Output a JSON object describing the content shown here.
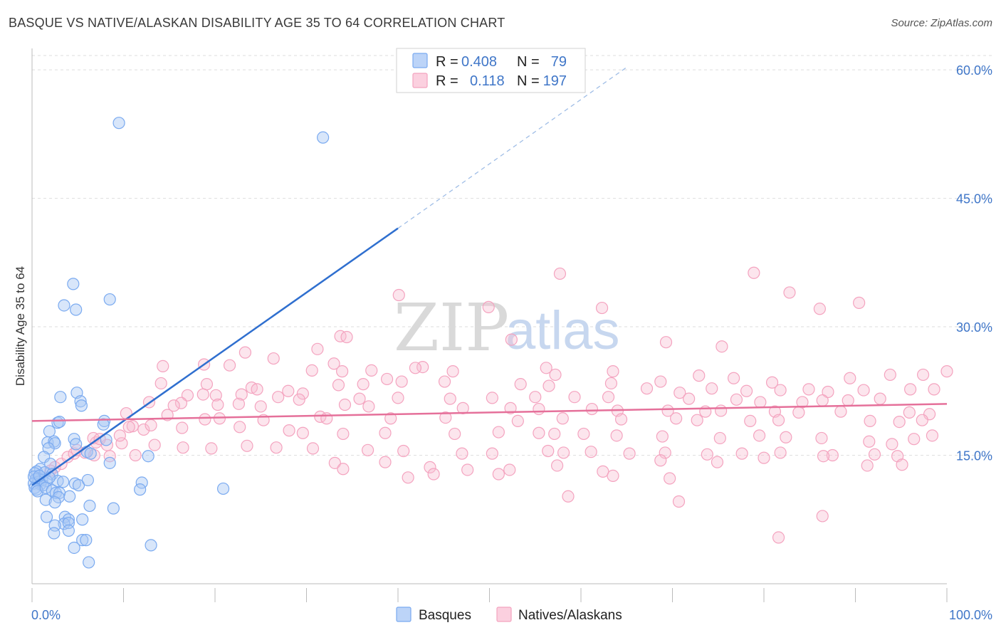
{
  "header": {
    "title": "BASQUE VS NATIVE/ALASKAN DISABILITY AGE 35 TO 64 CORRELATION CHART",
    "source": "Source: ZipAtlas.com"
  },
  "watermark": {
    "zip": "ZIP",
    "atlas": "atlas"
  },
  "legend": {
    "r_label": "R =",
    "n_label": "N =",
    "rows": [
      {
        "r": "0.408",
        "n": "79",
        "color": "#7aaaf0"
      },
      {
        "r": "0.118",
        "n": "197",
        "color": "#f4a3bf"
      }
    ]
  },
  "chart_data": {
    "type": "scatter",
    "title": "BASQUE VS NATIVE/ALASKAN DISABILITY AGE 35 TO 64 CORRELATION CHART",
    "xlabel": "",
    "ylabel": "Disability Age 35 to 64",
    "xlim": [
      0,
      100
    ],
    "ylim": [
      0,
      63
    ],
    "x_tick_labels": [
      "0.0%",
      "100.0%"
    ],
    "y_ticks": [
      15,
      30,
      45,
      60
    ],
    "y_tick_labels": [
      "15.0%",
      "30.0%",
      "45.0%",
      "60.0%"
    ],
    "grid": true,
    "legend_position": "top-center",
    "series": [
      {
        "name": "Basques",
        "color": "#7aaaf0",
        "line_color": "#2f6fcf",
        "trend": {
          "x0": 0,
          "y0": 11.5,
          "x1": 40,
          "y1": 41.5,
          "dash_to_x": 65,
          "dash_to_y": 60.3
        },
        "points": [
          [
            9.5,
            53.8
          ],
          [
            31.8,
            52.1
          ],
          [
            4.5,
            35.0
          ],
          [
            3.5,
            32.5
          ],
          [
            4.8,
            32.0
          ],
          [
            8.5,
            33.2
          ],
          [
            4.9,
            22.3
          ],
          [
            3.1,
            21.8
          ],
          [
            5.3,
            21.3
          ],
          [
            5.4,
            20.8
          ],
          [
            7.9,
            19.0
          ],
          [
            7.8,
            18.6
          ],
          [
            2.8,
            18.8
          ],
          [
            3.0,
            18.9
          ],
          [
            1.9,
            17.8
          ],
          [
            1.7,
            16.5
          ],
          [
            2.4,
            16.6
          ],
          [
            2.5,
            16.4
          ],
          [
            1.8,
            15.8
          ],
          [
            4.6,
            16.9
          ],
          [
            4.8,
            16.3
          ],
          [
            6.0,
            15.4
          ],
          [
            6.4,
            15.2
          ],
          [
            8.1,
            16.8
          ],
          [
            8.5,
            14.1
          ],
          [
            12.7,
            14.9
          ],
          [
            1.3,
            14.8
          ],
          [
            2.0,
            14.0
          ],
          [
            0.9,
            13.4
          ],
          [
            0.5,
            13.1
          ],
          [
            0.3,
            12.9
          ],
          [
            1.4,
            13.0
          ],
          [
            2.2,
            12.8
          ],
          [
            0.6,
            12.3
          ],
          [
            1.1,
            12.1
          ],
          [
            1.6,
            12.0
          ],
          [
            0.4,
            12.2
          ],
          [
            0.7,
            11.9
          ],
          [
            0.9,
            11.6
          ],
          [
            1.2,
            11.5
          ],
          [
            0.2,
            11.7
          ],
          [
            0.3,
            11.2
          ],
          [
            0.5,
            11.0
          ],
          [
            0.6,
            10.8
          ],
          [
            2.8,
            12.0
          ],
          [
            3.4,
            11.9
          ],
          [
            4.7,
            11.7
          ],
          [
            5.1,
            11.5
          ],
          [
            6.1,
            12.1
          ],
          [
            12.0,
            11.8
          ],
          [
            11.8,
            11.0
          ],
          [
            20.9,
            11.1
          ],
          [
            1.5,
            11.2
          ],
          [
            2.2,
            10.9
          ],
          [
            2.6,
            10.6
          ],
          [
            4.1,
            10.2
          ],
          [
            3.0,
            10.6
          ],
          [
            2.9,
            10.1
          ],
          [
            1.5,
            9.8
          ],
          [
            2.5,
            9.5
          ],
          [
            6.3,
            9.1
          ],
          [
            8.9,
            8.8
          ],
          [
            1.6,
            7.8
          ],
          [
            3.6,
            7.8
          ],
          [
            4.0,
            7.5
          ],
          [
            5.5,
            7.5
          ],
          [
            3.5,
            7.0
          ],
          [
            4.0,
            7.1
          ],
          [
            2.5,
            6.8
          ],
          [
            4.0,
            6.2
          ],
          [
            2.4,
            5.9
          ],
          [
            5.5,
            5.1
          ],
          [
            5.9,
            5.1
          ],
          [
            4.6,
            4.2
          ],
          [
            13.0,
            4.5
          ],
          [
            6.2,
            2.5
          ],
          [
            0.2,
            12.5
          ],
          [
            0.8,
            12.6
          ],
          [
            1.9,
            12.4
          ]
        ]
      },
      {
        "name": "Natives/Alaskans",
        "color": "#f4a3bf",
        "line_color": "#e5709a",
        "trend": {
          "x0": 0,
          "y0": 19.0,
          "x1": 100,
          "y1": 21.0
        },
        "points": [
          [
            57.7,
            36.2
          ],
          [
            78.9,
            36.3
          ],
          [
            82.8,
            34.0
          ],
          [
            40.1,
            33.7
          ],
          [
            49.9,
            32.3
          ],
          [
            62.3,
            32.2
          ],
          [
            86.1,
            32.1
          ],
          [
            90.4,
            32.8
          ],
          [
            33.7,
            28.9
          ],
          [
            34.4,
            28.8
          ],
          [
            52.4,
            28.5
          ],
          [
            69.3,
            28.2
          ],
          [
            75.4,
            27.7
          ],
          [
            31.2,
            27.4
          ],
          [
            23.3,
            27.0
          ],
          [
            26.4,
            26.3
          ],
          [
            33.0,
            25.7
          ],
          [
            42.7,
            25.3
          ],
          [
            56.2,
            25.2
          ],
          [
            14.3,
            25.4
          ],
          [
            18.8,
            25.6
          ],
          [
            21.6,
            25.5
          ],
          [
            30.6,
            24.9
          ],
          [
            33.9,
            24.8
          ],
          [
            37.1,
            24.9
          ],
          [
            41.9,
            25.2
          ],
          [
            46.0,
            24.8
          ],
          [
            57.2,
            24.4
          ],
          [
            63.5,
            24.8
          ],
          [
            68.7,
            23.6
          ],
          [
            72.9,
            24.3
          ],
          [
            76.7,
            24.0
          ],
          [
            80.9,
            23.5
          ],
          [
            89.4,
            24.0
          ],
          [
            93.8,
            24.4
          ],
          [
            97.4,
            24.4
          ],
          [
            100.0,
            24.8
          ],
          [
            14.1,
            23.4
          ],
          [
            19.1,
            23.3
          ],
          [
            24.0,
            22.9
          ],
          [
            24.6,
            22.7
          ],
          [
            28.0,
            22.5
          ],
          [
            29.6,
            22.2
          ],
          [
            33.5,
            23.2
          ],
          [
            36.2,
            23.3
          ],
          [
            38.8,
            23.9
          ],
          [
            40.4,
            23.6
          ],
          [
            45.1,
            23.6
          ],
          [
            53.4,
            23.3
          ],
          [
            56.5,
            23.1
          ],
          [
            63.3,
            23.4
          ],
          [
            67.2,
            22.8
          ],
          [
            70.8,
            22.3
          ],
          [
            74.3,
            22.8
          ],
          [
            78.1,
            22.5
          ],
          [
            81.8,
            22.6
          ],
          [
            84.9,
            22.7
          ],
          [
            87.0,
            22.4
          ],
          [
            90.9,
            22.6
          ],
          [
            96.0,
            22.7
          ],
          [
            98.6,
            22.7
          ],
          [
            17.0,
            22.0
          ],
          [
            18.7,
            22.1
          ],
          [
            20.1,
            22.0
          ],
          [
            22.9,
            22.1
          ],
          [
            26.9,
            21.8
          ],
          [
            29.2,
            21.5
          ],
          [
            35.8,
            21.6
          ],
          [
            40.0,
            21.7
          ],
          [
            45.7,
            21.6
          ],
          [
            50.3,
            21.7
          ],
          [
            55.0,
            21.8
          ],
          [
            59.3,
            21.8
          ],
          [
            63.0,
            21.8
          ],
          [
            71.8,
            21.6
          ],
          [
            77.0,
            21.5
          ],
          [
            79.6,
            21.2
          ],
          [
            84.2,
            21.2
          ],
          [
            86.4,
            21.4
          ],
          [
            89.2,
            21.4
          ],
          [
            92.7,
            21.6
          ],
          [
            12.8,
            21.2
          ],
          [
            16.3,
            21.1
          ],
          [
            20.3,
            20.9
          ],
          [
            22.6,
            21.0
          ],
          [
            25.0,
            20.7
          ],
          [
            34.2,
            20.9
          ],
          [
            36.8,
            20.7
          ],
          [
            47.1,
            20.5
          ],
          [
            52.3,
            20.5
          ],
          [
            55.4,
            20.4
          ],
          [
            61.2,
            20.4
          ],
          [
            64.0,
            20.2
          ],
          [
            69.5,
            20.2
          ],
          [
            73.6,
            20.1
          ],
          [
            75.3,
            20.2
          ],
          [
            81.2,
            20.1
          ],
          [
            83.8,
            20.0
          ],
          [
            88.4,
            20.1
          ],
          [
            95.9,
            20.0
          ],
          [
            98.1,
            19.8
          ],
          [
            10.3,
            19.9
          ],
          [
            14.8,
            19.7
          ],
          [
            18.9,
            19.2
          ],
          [
            20.5,
            19.3
          ],
          [
            25.3,
            19.1
          ],
          [
            31.5,
            19.5
          ],
          [
            32.2,
            19.3
          ],
          [
            39.2,
            19.3
          ],
          [
            45.2,
            19.4
          ],
          [
            53.1,
            19.0
          ],
          [
            58.0,
            19.3
          ],
          [
            64.4,
            19.2
          ],
          [
            70.4,
            19.3
          ],
          [
            72.7,
            19.1
          ],
          [
            78.5,
            19.0
          ],
          [
            81.6,
            19.1
          ],
          [
            91.6,
            19.0
          ],
          [
            94.8,
            18.9
          ],
          [
            97.3,
            19.1
          ],
          [
            11.0,
            18.4
          ],
          [
            12.2,
            18.0
          ],
          [
            13.0,
            18.5
          ],
          [
            16.4,
            18.2
          ],
          [
            22.7,
            18.3
          ],
          [
            28.1,
            17.9
          ],
          [
            29.6,
            17.6
          ],
          [
            34.0,
            17.5
          ],
          [
            38.6,
            17.6
          ],
          [
            46.2,
            17.5
          ],
          [
            51.0,
            17.7
          ],
          [
            55.4,
            17.6
          ],
          [
            57.1,
            17.5
          ],
          [
            60.3,
            17.5
          ],
          [
            63.9,
            17.3
          ],
          [
            68.9,
            17.2
          ],
          [
            75.2,
            17.0
          ],
          [
            79.5,
            17.3
          ],
          [
            82.4,
            17.1
          ],
          [
            86.3,
            17.0
          ],
          [
            91.5,
            16.6
          ],
          [
            94.0,
            16.3
          ],
          [
            96.4,
            16.9
          ],
          [
            98.4,
            17.3
          ],
          [
            7.0,
            16.5
          ],
          [
            8.2,
            16.2
          ],
          [
            9.8,
            16.4
          ],
          [
            13.4,
            16.2
          ],
          [
            16.5,
            15.9
          ],
          [
            19.6,
            15.8
          ],
          [
            23.5,
            16.1
          ],
          [
            26.7,
            15.9
          ],
          [
            30.7,
            15.8
          ],
          [
            36.7,
            15.6
          ],
          [
            40.6,
            15.5
          ],
          [
            47.0,
            15.2
          ],
          [
            50.3,
            15.2
          ],
          [
            56.4,
            15.5
          ],
          [
            58.1,
            15.3
          ],
          [
            61.1,
            15.4
          ],
          [
            65.3,
            15.2
          ],
          [
            69.2,
            15.3
          ],
          [
            73.8,
            15.1
          ],
          [
            77.6,
            15.2
          ],
          [
            81.8,
            15.3
          ],
          [
            87.5,
            15.0
          ],
          [
            92.1,
            15.1
          ],
          [
            94.6,
            14.9
          ],
          [
            5.8,
            15.3
          ],
          [
            6.8,
            15.0
          ],
          [
            8.5,
            14.9
          ],
          [
            11.3,
            15.0
          ],
          [
            33.1,
            14.1
          ],
          [
            38.6,
            14.2
          ],
          [
            43.5,
            13.6
          ],
          [
            47.6,
            13.3
          ],
          [
            52.2,
            13.3
          ],
          [
            57.4,
            13.8
          ],
          [
            62.4,
            13.1
          ],
          [
            68.7,
            14.4
          ],
          [
            74.9,
            14.2
          ],
          [
            80.0,
            14.7
          ],
          [
            86.5,
            14.9
          ],
          [
            91.3,
            13.8
          ],
          [
            95.1,
            13.9
          ],
          [
            34.0,
            13.4
          ],
          [
            41.1,
            12.4
          ],
          [
            43.9,
            12.8
          ],
          [
            51.0,
            12.8
          ],
          [
            63.5,
            12.6
          ],
          [
            69.7,
            12.3
          ],
          [
            2.5,
            13.6
          ],
          [
            3.2,
            14.0
          ],
          [
            3.9,
            14.8
          ],
          [
            4.6,
            15.2
          ],
          [
            4.9,
            15.6
          ],
          [
            2.0,
            13.2
          ],
          [
            58.6,
            10.2
          ],
          [
            70.7,
            9.6
          ],
          [
            81.6,
            5.4
          ],
          [
            86.4,
            7.9
          ],
          [
            10.6,
            18.3
          ],
          [
            15.5,
            20.8
          ],
          [
            6.7,
            17.0
          ],
          [
            9.6,
            17.3
          ],
          [
            7.4,
            16.9
          ]
        ]
      }
    ]
  },
  "bottom_legend": [
    {
      "label": "Basques",
      "color": "#7aaaf0"
    },
    {
      "label": "Natives/Alaskans",
      "color": "#f4a3bf"
    }
  ]
}
